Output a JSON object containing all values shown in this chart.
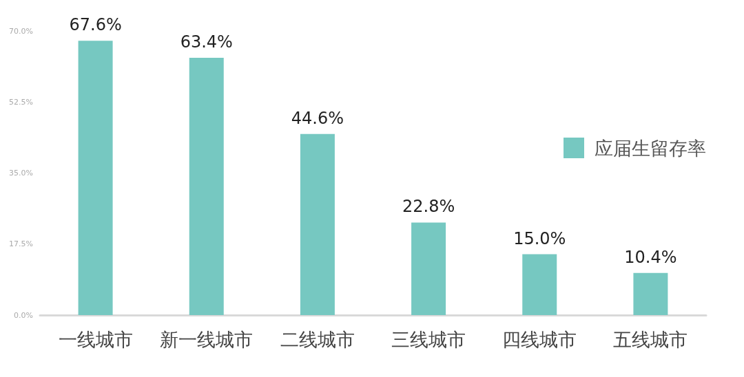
{
  "chart_data": {
    "type": "bar",
    "categories": [
      "一线城市",
      "新一线城市",
      "二线城市",
      "三线城市",
      "四线城市",
      "五线城市"
    ],
    "series": [
      {
        "name": "应届生留存率",
        "color": "#76c8c1",
        "values": [
          67.6,
          63.4,
          44.6,
          22.8,
          15.0,
          10.4
        ],
        "value_labels": [
          "67.6%",
          "63.4%",
          "44.6%",
          "22.8%",
          "15.0%",
          "10.4%"
        ]
      }
    ],
    "ylim": [
      0,
      70
    ],
    "yticks": [
      {
        "value": 0,
        "label": "0.0%"
      },
      {
        "value": 17.5,
        "label": "17.5%"
      },
      {
        "value": 35,
        "label": "35.0%"
      },
      {
        "value": 52.5,
        "label": "52.5%"
      },
      {
        "value": 70,
        "label": "70.0%"
      }
    ],
    "grid": false,
    "legend": "right"
  }
}
